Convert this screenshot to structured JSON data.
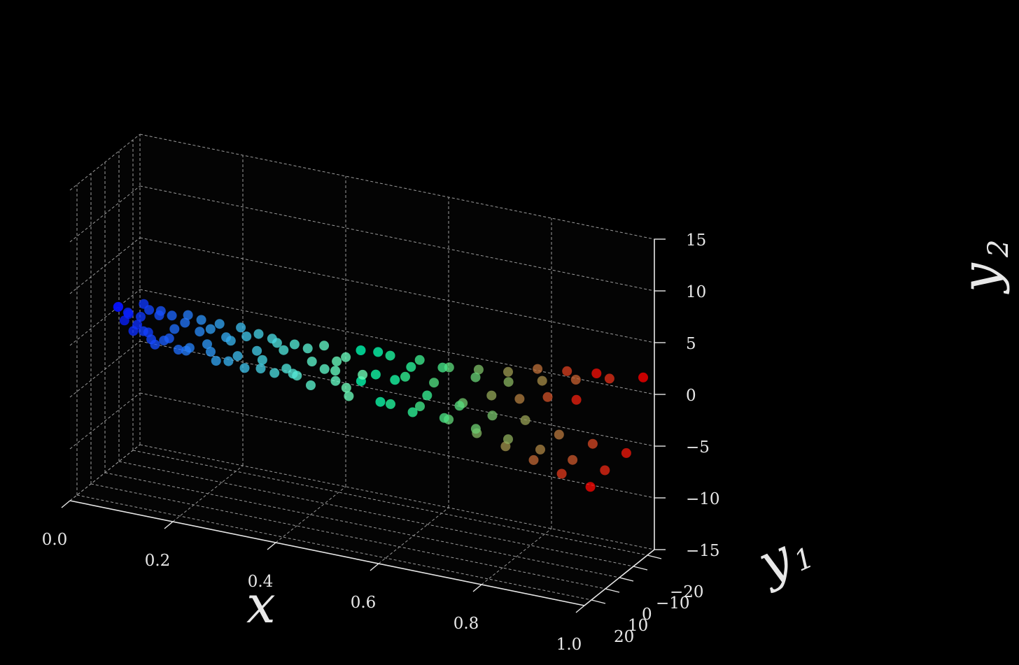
{
  "chart_data": {
    "type": "scatter3d",
    "title": "",
    "style": {
      "background": "#000000",
      "grid": true,
      "grid_color": "#9a9a9a",
      "grid_style": "dashed",
      "axis_color": "#e6e6e6",
      "colormap": "rainbow",
      "color_by": "x"
    },
    "axes": {
      "x": {
        "label": "x",
        "range": [
          0.0,
          1.0
        ],
        "ticks": [
          "0.0",
          "0.2",
          "0.4",
          "0.6",
          "0.8",
          "1.0"
        ]
      },
      "y1": {
        "label": "y",
        "subscript": "1",
        "range": [
          -25,
          25
        ],
        "ticks": [
          "−20",
          "−10",
          "0",
          "10",
          "20"
        ]
      },
      "y2": {
        "label": "y",
        "subscript": "2",
        "range": [
          -15,
          15
        ],
        "ticks": [
          "−15",
          "−10",
          "−5",
          "0",
          "5",
          "10",
          "15"
        ]
      }
    },
    "points": [
      [
        0.02,
        -2,
        1
      ],
      [
        0.03,
        1.5,
        1.5
      ],
      [
        0.04,
        -2.2,
        0.5
      ],
      [
        0.04,
        0.8,
        0.2
      ],
      [
        0.05,
        2,
        1.2
      ],
      [
        0.06,
        -1,
        -0.2
      ],
      [
        0.06,
        1.8,
        -0.5
      ],
      [
        0.07,
        -2,
        1.8
      ],
      [
        0.07,
        0.2,
        0.8
      ],
      [
        0.08,
        -1.5,
        -0.8
      ],
      [
        0.08,
        2,
        -0.3
      ],
      [
        0.09,
        0,
        -1.2
      ],
      [
        0.09,
        1.5,
        1.8
      ],
      [
        0.1,
        -2,
        1
      ],
      [
        0.1,
        1,
        -1.5
      ],
      [
        0.11,
        0.5,
        1.8
      ],
      [
        0.12,
        -1.8,
        -1
      ],
      [
        0.12,
        2,
        -0.8
      ],
      [
        0.13,
        0,
        1.5
      ],
      [
        0.14,
        -1,
        -1.8
      ],
      [
        0.14,
        1.8,
        0.5
      ],
      [
        0.15,
        -2,
        0.8
      ],
      [
        0.16,
        0.8,
        -1.5
      ],
      [
        0.16,
        -0.5,
        1.8
      ],
      [
        0.17,
        2,
        -1
      ],
      [
        0.18,
        -1.5,
        0.3
      ],
      [
        0.19,
        1,
        1.8
      ],
      [
        0.2,
        -2,
        -1.5
      ],
      [
        0.2,
        0.5,
        -0.5
      ],
      [
        0.21,
        1.8,
        1.2
      ],
      [
        0.22,
        -1,
        1.5
      ],
      [
        0.22,
        1.5,
        -1.8
      ],
      [
        0.23,
        -2,
        0.2
      ],
      [
        0.24,
        0,
        -1.8
      ],
      [
        0.25,
        2,
        0.5
      ],
      [
        0.26,
        -1.5,
        1.5
      ],
      [
        0.26,
        0.8,
        -1
      ],
      [
        0.27,
        -0.5,
        -2.2
      ],
      [
        0.28,
        1.8,
        1.2
      ],
      [
        0.29,
        -2,
        -0.5
      ],
      [
        0.3,
        0.5,
        1.5
      ],
      [
        0.3,
        -1,
        -2
      ],
      [
        0.31,
        1.5,
        -0.8
      ],
      [
        0.32,
        -1.8,
        1
      ],
      [
        0.33,
        0.2,
        -2
      ],
      [
        0.34,
        2,
        1.2
      ],
      [
        0.35,
        -1,
        -1.5
      ],
      [
        0.35,
        1,
        0.5
      ],
      [
        0.36,
        -2,
        -2
      ],
      [
        0.37,
        0.5,
        1.2
      ],
      [
        0.38,
        2.5,
        -1.5
      ],
      [
        0.39,
        -1.5,
        0.8
      ],
      [
        0.4,
        0,
        -2.5
      ],
      [
        0.41,
        2.8,
        0.2
      ],
      [
        0.42,
        -2.5,
        -1
      ],
      [
        0.43,
        1.5,
        1.8
      ],
      [
        0.44,
        -3,
        -2
      ],
      [
        0.45,
        0.8,
        -0.5
      ],
      [
        0.46,
        3.5,
        0.8
      ],
      [
        0.46,
        -3,
        0.5
      ],
      [
        0.47,
        -1.5,
        -3
      ],
      [
        0.48,
        4,
        -1.5
      ],
      [
        0.49,
        -4,
        -1
      ],
      [
        0.5,
        1,
        2
      ],
      [
        0.51,
        4.5,
        -0.5
      ],
      [
        0.52,
        -4,
        1.5
      ],
      [
        0.53,
        -2,
        -3
      ],
      [
        0.54,
        5,
        0.5
      ],
      [
        0.55,
        -5,
        -1
      ],
      [
        0.56,
        2,
        2.2
      ],
      [
        0.57,
        5.5,
        -2
      ],
      [
        0.58,
        -5.5,
        0.5
      ],
      [
        0.59,
        -3,
        -3.5
      ],
      [
        0.6,
        6,
        1
      ],
      [
        0.61,
        -6,
        -2
      ],
      [
        0.62,
        3,
        2.5
      ],
      [
        0.63,
        6.5,
        -1.5
      ],
      [
        0.64,
        -6,
        1
      ],
      [
        0.65,
        -3.5,
        -3.5
      ],
      [
        0.66,
        7.5,
        1.2
      ],
      [
        0.67,
        -7,
        -2.5
      ],
      [
        0.68,
        4,
        2.5
      ],
      [
        0.69,
        8,
        -2
      ],
      [
        0.7,
        -7.5,
        0.5
      ],
      [
        0.71,
        -4,
        -4
      ],
      [
        0.72,
        9,
        0
      ],
      [
        0.73,
        -8.5,
        -3
      ],
      [
        0.74,
        5,
        3
      ],
      [
        0.75,
        10,
        -2.5
      ],
      [
        0.76,
        -9,
        0.5
      ],
      [
        0.77,
        -5,
        -4.5
      ],
      [
        0.78,
        10.5,
        1.5
      ],
      [
        0.79,
        -10,
        -3
      ],
      [
        0.8,
        6,
        3.5
      ],
      [
        0.81,
        11.5,
        -3
      ],
      [
        0.82,
        -11,
        1
      ],
      [
        0.83,
        -6,
        -5
      ],
      [
        0.84,
        12.5,
        2
      ],
      [
        0.85,
        -12,
        -4
      ],
      [
        0.86,
        7,
        4.5
      ],
      [
        0.87,
        13.5,
        -3.5
      ],
      [
        0.88,
        -13,
        1.5
      ],
      [
        0.89,
        -7,
        -5.5
      ],
      [
        0.9,
        14.5,
        3
      ],
      [
        0.91,
        -14,
        -4.5
      ],
      [
        0.92,
        8,
        5
      ],
      [
        0.93,
        15.5,
        -4
      ],
      [
        0.94,
        -15,
        2
      ],
      [
        0.95,
        -8,
        -6
      ],
      [
        0.96,
        16,
        3.5
      ],
      [
        0.97,
        -16,
        -5
      ],
      [
        0.98,
        9,
        5.5
      ],
      [
        0.99,
        17,
        -4.5
      ],
      [
        1.0,
        -17,
        2.5
      ]
    ]
  }
}
